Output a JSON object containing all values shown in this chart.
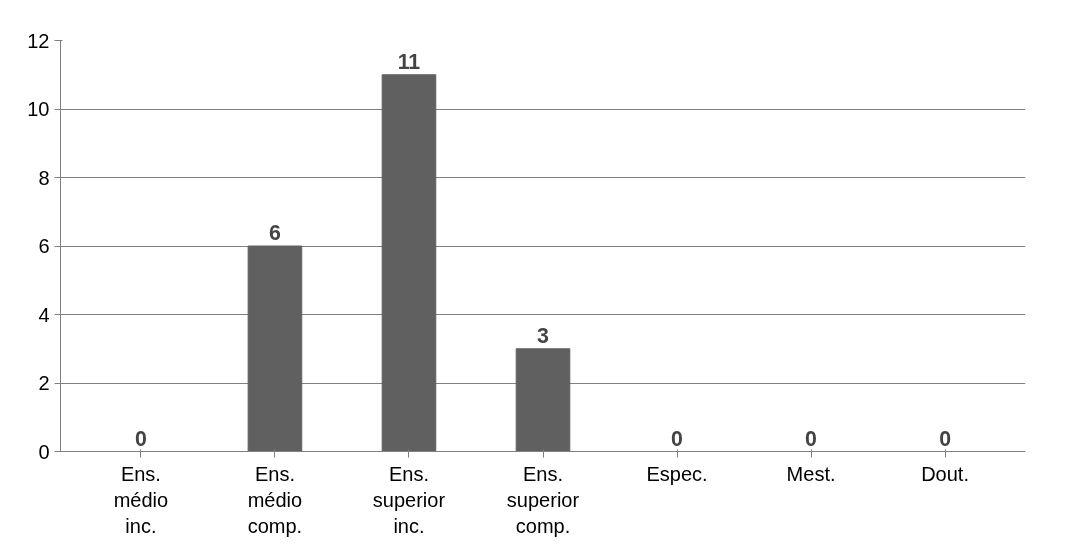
{
  "chart_data": {
    "type": "bar",
    "categories": [
      "Ens. médio inc.",
      "Ens. médio comp.",
      "Ens. superior inc.",
      "Ens. superior comp.",
      "Espec.",
      "Mest.",
      "Dout."
    ],
    "values": [
      0,
      6,
      11,
      3,
      0,
      0,
      0
    ],
    "color": "#606060",
    "ylim": [
      0,
      12
    ],
    "yticks": [
      0,
      2,
      4,
      6,
      8,
      10,
      12
    ],
    "grid": "y",
    "data_labels": true
  }
}
